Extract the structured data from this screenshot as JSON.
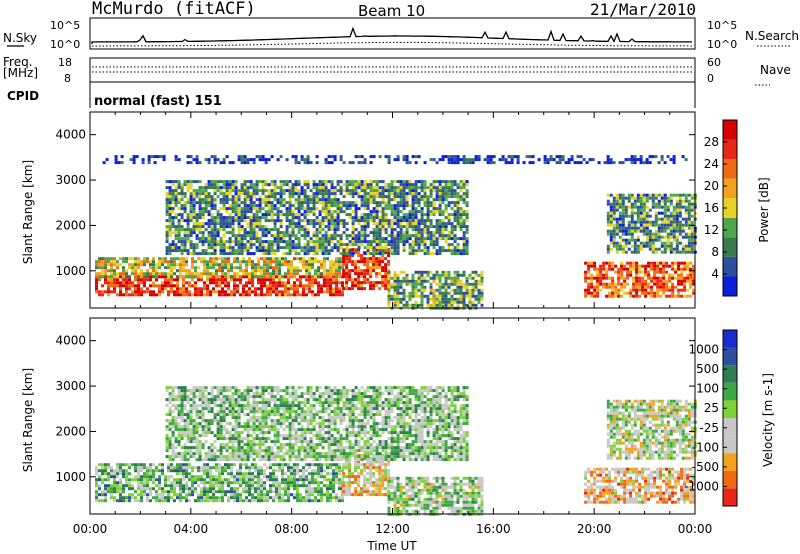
{
  "header": {
    "station": "McMurdo (fitACF)",
    "beam": "Beam 10",
    "date": "21/Mar/2010"
  },
  "noise_panel": {
    "left_label": "N.Sky",
    "right_label": "N.Search",
    "left_ticks": [
      "10^5",
      "10^0"
    ],
    "right_ticks": [
      "10^5",
      "10^0"
    ]
  },
  "freq_panel": {
    "left_label_1": "Freq.",
    "left_label_2": "[MHz]",
    "right_label": "Nave",
    "left_ticks": [
      "18",
      "8"
    ],
    "right_ticks": [
      "60",
      "0"
    ]
  },
  "cpid": {
    "label": "CPID",
    "value": "normal (fast) 151"
  },
  "colors": {
    "power_scale": [
      "#0a1edc",
      "#2c4fa0",
      "#3b7a4c",
      "#4fa64f",
      "#e7d22a",
      "#f4a11c",
      "#f06a14",
      "#e8261a",
      "#d60000"
    ],
    "velocity_scale": [
      "#e8261a",
      "#f06a14",
      "#f4a11c",
      "#c8c8c8",
      "#c8c8c8",
      "#7ed23a",
      "#3fa844",
      "#2e7d4f",
      "#2c4fa0",
      "#1a2acc"
    ]
  },
  "chart_data": [
    {
      "type": "heatmap",
      "name": "power",
      "ylabel": "Slant Range [km]",
      "xlabel": "Time UT",
      "x_ticks": [
        "00:00",
        "04:00",
        "08:00",
        "12:00",
        "16:00",
        "20:00",
        "00:00"
      ],
      "y_ticks": [
        1000,
        2000,
        3000,
        4000
      ],
      "ylim": [
        180,
        4500
      ],
      "xlim_hours": [
        0,
        24
      ],
      "colorbar_label": "Power [dB]",
      "colorbar_ticks": [
        4,
        8,
        12,
        16,
        20,
        24,
        28
      ],
      "echo_regions": [
        {
          "t0": 0.2,
          "t1": 10.0,
          "r0": 450,
          "r1": 900,
          "level": 0.85
        },
        {
          "t0": 0.2,
          "t1": 10.0,
          "r0": 900,
          "r1": 1300,
          "level": 0.5
        },
        {
          "t0": 10.0,
          "t1": 11.8,
          "r0": 600,
          "r1": 1500,
          "level": 0.8
        },
        {
          "t0": 11.8,
          "t1": 15.5,
          "r0": 200,
          "r1": 1000,
          "level": 0.35
        },
        {
          "t0": 3.0,
          "t1": 15.0,
          "r0": 1400,
          "r1": 3000,
          "level": 0.3
        },
        {
          "t0": 19.6,
          "t1": 24.0,
          "r0": 450,
          "r1": 1200,
          "level": 0.75
        },
        {
          "t0": 20.5,
          "t1": 24.0,
          "r0": 1400,
          "r1": 2700,
          "level": 0.3
        },
        {
          "t0": 0.5,
          "t1": 23.8,
          "r0": 3400,
          "r1": 3550,
          "level": 0.1
        }
      ]
    },
    {
      "type": "heatmap",
      "name": "velocity",
      "ylabel": "Slant Range [km]",
      "xlabel": "Time UT",
      "x_ticks": [
        "00:00",
        "04:00",
        "08:00",
        "12:00",
        "16:00",
        "20:00",
        "00:00"
      ],
      "y_ticks": [
        1000,
        2000,
        3000,
        4000
      ],
      "ylim": [
        180,
        4500
      ],
      "xlim_hours": [
        0,
        24
      ],
      "colorbar_label": "Velocity [m s-1]",
      "colorbar_ticks": [
        -1000,
        -500,
        -100,
        -25,
        25,
        100,
        500,
        1000
      ],
      "echo_regions": [
        {
          "t0": 0.2,
          "t1": 10.0,
          "r0": 450,
          "r1": 1300,
          "level": 0.6
        },
        {
          "t0": 10.0,
          "t1": 11.8,
          "r0": 600,
          "r1": 1500,
          "level": 0.35
        },
        {
          "t0": 11.8,
          "t1": 15.5,
          "r0": 200,
          "r1": 1000,
          "level": 0.5
        },
        {
          "t0": 3.0,
          "t1": 15.0,
          "r0": 1400,
          "r1": 3000,
          "level": 0.55
        },
        {
          "t0": 19.6,
          "t1": 24.0,
          "r0": 450,
          "r1": 1200,
          "level": 0.3
        },
        {
          "t0": 20.5,
          "t1": 24.0,
          "r0": 1400,
          "r1": 2700,
          "level": 0.45
        }
      ]
    }
  ]
}
